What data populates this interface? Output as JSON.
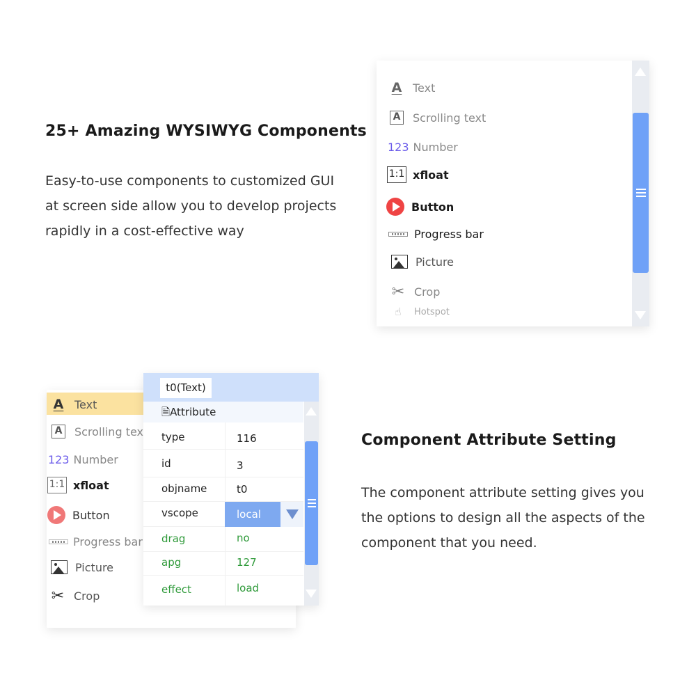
{
  "section1": {
    "title": "25+ Amazing WYSIWYG Components",
    "description_lines": [
      "Easy-to-use components to customized GUI",
      "at screen side allow you to develop projects",
      "rapidly in a cost-effective way"
    ]
  },
  "component_list_top": {
    "items": [
      {
        "label": "Text",
        "icon": "text-underline-icon"
      },
      {
        "label": "Scrolling text",
        "icon": "boxed-a-icon"
      },
      {
        "label": "Number",
        "icon_text": "123",
        "icon": "number-icon"
      },
      {
        "label": "xfloat",
        "icon_text": "1:1",
        "icon": "ratio-icon"
      },
      {
        "label": "Button",
        "icon": "play-button-icon"
      },
      {
        "label": "Progress bar",
        "icon": "progress-bar-icon"
      },
      {
        "label": "Picture",
        "icon": "picture-icon"
      },
      {
        "label": "Crop",
        "icon": "scissors-icon"
      },
      {
        "label": "Hotspot",
        "icon": "hotspot-icon"
      }
    ]
  },
  "section2": {
    "title": "Component Attribute Setting",
    "description_lines": [
      "The component attribute setting gives you",
      "the options to design all the aspects of the",
      "component that you need."
    ]
  },
  "component_list_bottom": {
    "selected": "Text",
    "items": [
      {
        "label": "Text"
      },
      {
        "label": "Scrolling text"
      },
      {
        "label": "Number",
        "icon_text": "123"
      },
      {
        "label": "xfloat",
        "icon_text": "1:1"
      },
      {
        "label": "Button"
      },
      {
        "label": "Progress bar"
      },
      {
        "label": "Picture"
      },
      {
        "label": "Crop"
      }
    ]
  },
  "attribute_panel": {
    "tab": "t0(Text)",
    "header": "Attribute",
    "rows": [
      {
        "key": "type",
        "value": "116"
      },
      {
        "key": "id",
        "value": "3"
      },
      {
        "key": "objname",
        "value": "t0"
      },
      {
        "key": "vscope",
        "value": "local"
      },
      {
        "key": "drag",
        "value": "no"
      },
      {
        "key": "apg",
        "value": "127"
      },
      {
        "key": "effect",
        "value": "load"
      }
    ]
  },
  "colors": {
    "accent_blue": "#6fa1f7",
    "highlight_yellow": "#fbe2a0",
    "button_red": "#ef4444",
    "number_purple": "#6b5bea",
    "editable_green": "#2f9a3a"
  }
}
